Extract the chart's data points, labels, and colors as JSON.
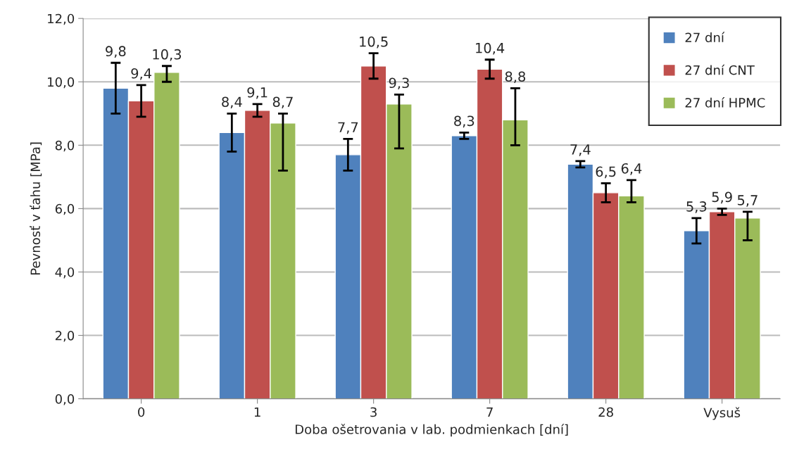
{
  "chart_data": {
    "type": "bar",
    "xlabel": "Doba ošetrovania v lab. podmienkach [dní]",
    "ylabel": "Pevnosť v ťahu [MPa]",
    "categories": [
      "0",
      "1",
      "3",
      "7",
      "28",
      "Vysuš"
    ],
    "series": [
      {
        "name": "27 dní",
        "color": "#4f81bd",
        "values": [
          9.8,
          8.4,
          7.7,
          8.3,
          7.4,
          5.3
        ],
        "value_labels": [
          "9,8",
          "8,4",
          "7,7",
          "8,3",
          "7,4",
          "5,3"
        ],
        "errors": [
          [
            9.0,
            10.6
          ],
          [
            7.8,
            9.0
          ],
          [
            7.2,
            8.2
          ],
          [
            8.2,
            8.4
          ],
          [
            7.3,
            7.5
          ],
          [
            4.9,
            5.7
          ]
        ]
      },
      {
        "name": "27 dní CNT",
        "color": "#c0504d",
        "values": [
          9.4,
          9.1,
          10.5,
          10.4,
          6.5,
          5.9
        ],
        "value_labels": [
          "9,4",
          "9,1",
          "10,5",
          "10,4",
          "6,5",
          "5,9"
        ],
        "errors": [
          [
            8.9,
            9.9
          ],
          [
            8.9,
            9.3
          ],
          [
            10.1,
            10.9
          ],
          [
            10.1,
            10.7
          ],
          [
            6.2,
            6.8
          ],
          [
            5.8,
            6.0
          ]
        ]
      },
      {
        "name": "27 dní HPMC",
        "color": "#9bbb59",
        "values": [
          10.3,
          8.7,
          9.3,
          8.8,
          6.4,
          5.7
        ],
        "value_labels": [
          "10,3",
          "8,7",
          "9,3",
          "8,8",
          "6,4",
          "5,7"
        ],
        "errors": [
          [
            10.0,
            10.5
          ],
          [
            7.2,
            9.0
          ],
          [
            7.9,
            9.6
          ],
          [
            8.0,
            9.8
          ],
          [
            6.2,
            6.9
          ],
          [
            5.0,
            5.9
          ]
        ]
      }
    ],
    "ylim": [
      0,
      12
    ],
    "yticks": [
      {
        "value": 0,
        "label": "0,0"
      },
      {
        "value": 2,
        "label": "2,0"
      },
      {
        "value": 4,
        "label": "4,0"
      },
      {
        "value": 6,
        "label": "6,0"
      },
      {
        "value": 8,
        "label": "8,0"
      },
      {
        "value": 10,
        "label": "10,0"
      },
      {
        "value": 12,
        "label": "12,0"
      }
    ],
    "grid": "y",
    "legend": "top right"
  }
}
